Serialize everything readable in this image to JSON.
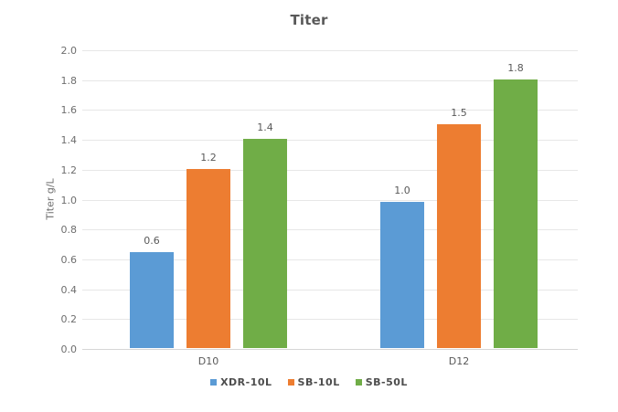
{
  "chart_data": {
    "type": "bar",
    "title": "Titer",
    "ylabel": "Titer g/L",
    "xlabel": "",
    "categories": [
      "D10",
      "D12"
    ],
    "series": [
      {
        "name": "XDR-10L",
        "color": "#5B9BD5",
        "values": [
          0.64,
          0.98
        ],
        "data_labels": [
          "0.6",
          "1.0"
        ]
      },
      {
        "name": "SB-10L",
        "color": "#ED7D31",
        "values": [
          1.2,
          1.5
        ],
        "data_labels": [
          "1.2",
          "1.5"
        ]
      },
      {
        "name": "SB-50L",
        "color": "#70AD47",
        "values": [
          1.4,
          1.8
        ],
        "data_labels": [
          "1.4",
          "1.8"
        ]
      }
    ],
    "ylim": [
      0,
      2.0
    ],
    "ytick_step": 0.2,
    "ytick_labels": [
      "0.0",
      "0.2",
      "0.4",
      "0.6",
      "0.8",
      "1.0",
      "1.2",
      "1.4",
      "1.6",
      "1.8",
      "2.0"
    ],
    "grid": true,
    "legend_position": "bottom",
    "text_colors": {
      "title": "#595959",
      "axis_ticks": "#6e6e6e",
      "data_labels": "#595959",
      "legend": "#4d4d4d"
    },
    "grid_color": "#e7e7e7",
    "baseline_color": "#d6d6d6",
    "background": "#ffffff"
  }
}
